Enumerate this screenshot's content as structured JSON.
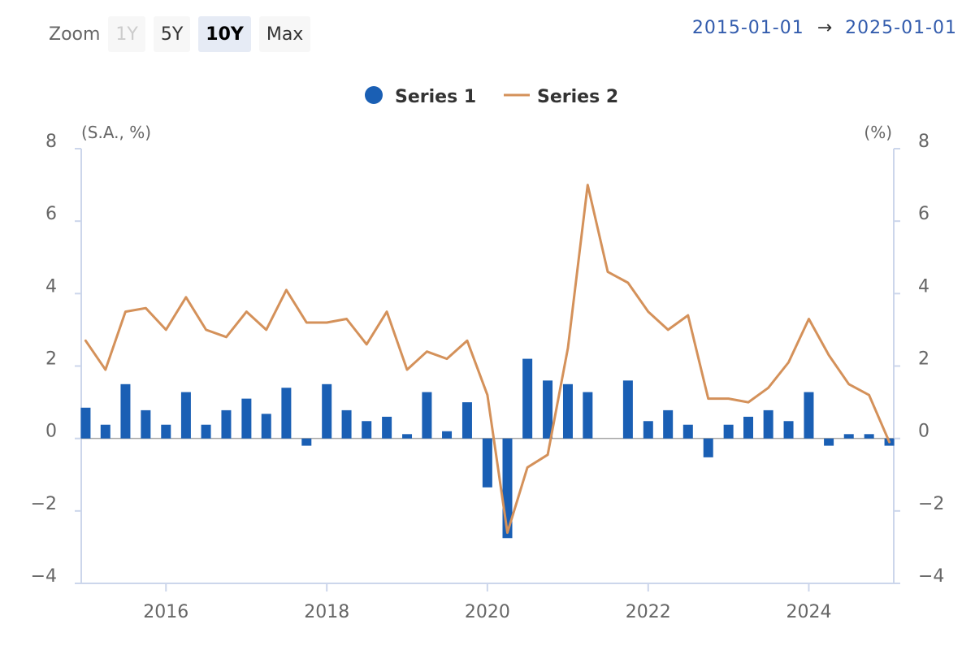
{
  "zoom": {
    "label": "Zoom",
    "buttons": [
      {
        "label": "1Y",
        "state": "disabled"
      },
      {
        "label": "5Y",
        "state": "normal"
      },
      {
        "label": "10Y",
        "state": "active"
      },
      {
        "label": "Max",
        "state": "normal"
      }
    ]
  },
  "range": {
    "from": "2015-01-01",
    "arrow": "→",
    "to": "2025-01-01"
  },
  "colors": {
    "series1": "#1a5fb4",
    "series2": "#d4915a",
    "axis": "#ccd6eb",
    "text": "#666666"
  },
  "chart_data": {
    "type": "bar+line",
    "legend": {
      "placement": "top-center",
      "entries": [
        "Series 1",
        "Series 2"
      ]
    },
    "left_axis": {
      "label": "(S.A., %)",
      "range": [
        -4,
        8
      ],
      "ticks": [
        -4,
        -2,
        0,
        2,
        4,
        6,
        8
      ],
      "tick_labels": [
        "−4",
        "−2",
        "0",
        "2",
        "4",
        "6",
        "8"
      ]
    },
    "right_axis": {
      "label": "(%)",
      "range": [
        -4,
        8
      ],
      "ticks": [
        -4,
        -2,
        0,
        2,
        4,
        6,
        8
      ],
      "tick_labels": [
        "−4",
        "−2",
        "0",
        "2",
        "4",
        "6",
        "8"
      ]
    },
    "x_axis": {
      "range": [
        "2015-01-01",
        "2025-01-01"
      ],
      "ticks": [
        "2016",
        "2018",
        "2020",
        "2022",
        "2024"
      ]
    },
    "grid": false,
    "series": [
      {
        "name": "Series 1",
        "type": "column",
        "points": [
          [
            "2015-01-01",
            0.85
          ],
          [
            "2015-04-01",
            0.38
          ],
          [
            "2015-07-01",
            1.5
          ],
          [
            "2015-10-01",
            0.78
          ],
          [
            "2016-01-01",
            0.38
          ],
          [
            "2016-04-01",
            1.28
          ],
          [
            "2016-07-01",
            0.38
          ],
          [
            "2016-10-01",
            0.78
          ],
          [
            "2017-01-01",
            1.1
          ],
          [
            "2017-04-01",
            0.68
          ],
          [
            "2017-07-01",
            1.4
          ],
          [
            "2017-10-01",
            -0.2
          ],
          [
            "2018-01-01",
            1.5
          ],
          [
            "2018-04-01",
            0.78
          ],
          [
            "2018-07-01",
            0.48
          ],
          [
            "2018-10-01",
            0.6
          ],
          [
            "2019-01-01",
            0.12
          ],
          [
            "2019-04-01",
            1.28
          ],
          [
            "2019-07-01",
            0.2
          ],
          [
            "2019-10-01",
            1.0
          ],
          [
            "2020-01-01",
            -1.35
          ],
          [
            "2020-04-01",
            -2.75
          ],
          [
            "2020-07-01",
            2.2
          ],
          [
            "2020-10-01",
            1.6
          ],
          [
            "2021-01-01",
            1.5
          ],
          [
            "2021-04-01",
            1.28
          ],
          [
            "2021-07-01",
            0.0
          ],
          [
            "2021-10-01",
            1.6
          ],
          [
            "2022-01-01",
            0.48
          ],
          [
            "2022-04-01",
            0.78
          ],
          [
            "2022-07-01",
            0.38
          ],
          [
            "2022-10-01",
            -0.52
          ],
          [
            "2023-01-01",
            0.38
          ],
          [
            "2023-04-01",
            0.6
          ],
          [
            "2023-07-01",
            0.78
          ],
          [
            "2023-10-01",
            0.48
          ],
          [
            "2024-01-01",
            1.28
          ],
          [
            "2024-04-01",
            -0.2
          ],
          [
            "2024-07-01",
            0.12
          ],
          [
            "2024-10-01",
            0.12
          ],
          [
            "2025-01-01",
            -0.2
          ]
        ]
      },
      {
        "name": "Series 2",
        "type": "line",
        "points": [
          [
            "2015-01-01",
            2.7
          ],
          [
            "2015-04-01",
            1.9
          ],
          [
            "2015-07-01",
            3.5
          ],
          [
            "2015-10-01",
            3.6
          ],
          [
            "2016-01-01",
            3.0
          ],
          [
            "2016-04-01",
            3.9
          ],
          [
            "2016-07-01",
            3.0
          ],
          [
            "2016-10-01",
            2.8
          ],
          [
            "2017-01-01",
            3.5
          ],
          [
            "2017-04-01",
            3.0
          ],
          [
            "2017-07-01",
            4.1
          ],
          [
            "2017-10-01",
            3.2
          ],
          [
            "2018-01-01",
            3.2
          ],
          [
            "2018-04-01",
            3.3
          ],
          [
            "2018-07-01",
            2.6
          ],
          [
            "2018-10-01",
            3.5
          ],
          [
            "2019-01-01",
            1.9
          ],
          [
            "2019-04-01",
            2.4
          ],
          [
            "2019-07-01",
            2.2
          ],
          [
            "2019-10-01",
            2.7
          ],
          [
            "2020-01-01",
            1.2
          ],
          [
            "2020-04-01",
            -2.6
          ],
          [
            "2020-07-01",
            -0.8
          ],
          [
            "2020-10-01",
            -0.45
          ],
          [
            "2021-01-01",
            2.5
          ],
          [
            "2021-04-01",
            7.0
          ],
          [
            "2021-07-01",
            4.6
          ],
          [
            "2021-10-01",
            4.3
          ],
          [
            "2022-01-01",
            3.5
          ],
          [
            "2022-04-01",
            3.0
          ],
          [
            "2022-07-01",
            3.4
          ],
          [
            "2022-10-01",
            1.1
          ],
          [
            "2023-01-01",
            1.1
          ],
          [
            "2023-04-01",
            1.0
          ],
          [
            "2023-07-01",
            1.4
          ],
          [
            "2023-10-01",
            2.1
          ],
          [
            "2024-01-01",
            3.3
          ],
          [
            "2024-04-01",
            2.3
          ],
          [
            "2024-07-01",
            1.5
          ],
          [
            "2024-10-01",
            1.2
          ],
          [
            "2025-01-01",
            -0.1
          ]
        ]
      }
    ]
  }
}
